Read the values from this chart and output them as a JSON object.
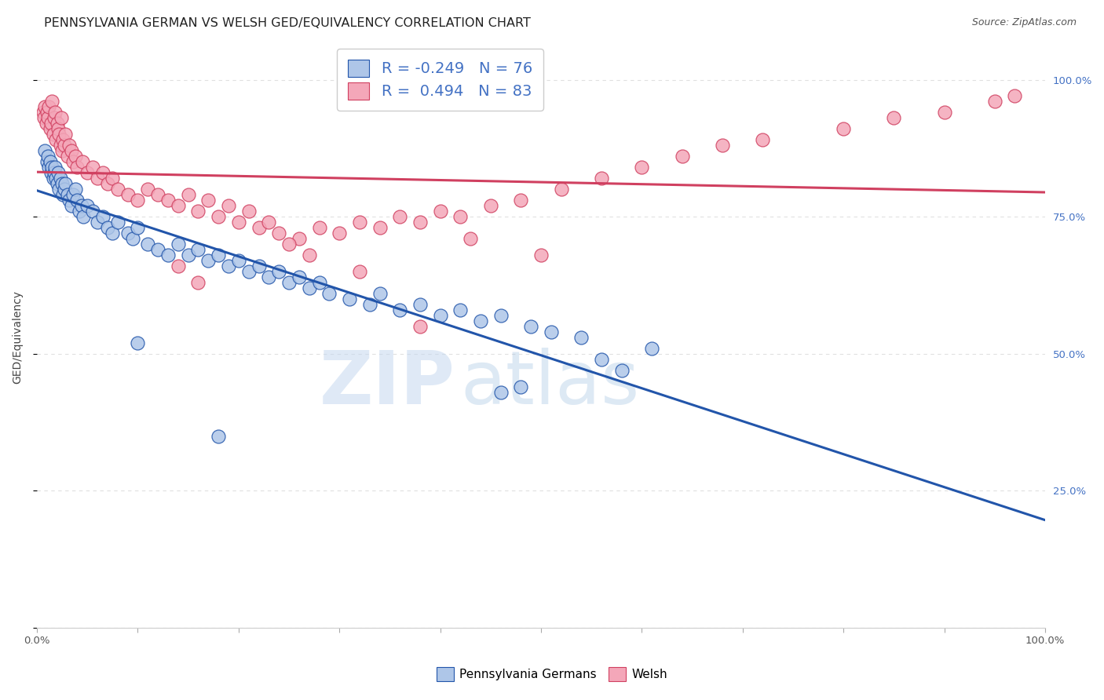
{
  "title": "PENNSYLVANIA GERMAN VS WELSH GED/EQUIVALENCY CORRELATION CHART",
  "source": "Source: ZipAtlas.com",
  "ylabel": "GED/Equivalency",
  "xlim": [
    0.0,
    1.0
  ],
  "ylim": [
    0.0,
    1.06
  ],
  "blue_R": -0.249,
  "blue_N": 76,
  "pink_R": 0.494,
  "pink_N": 83,
  "blue_color": "#aec6e8",
  "pink_color": "#f4a7b9",
  "blue_line_color": "#2255aa",
  "pink_line_color": "#d04060",
  "watermark_zip": "ZIP",
  "watermark_atlas": "atlas",
  "background_color": "#ffffff",
  "grid_color": "#e0e0e0",
  "title_fontsize": 11.5,
  "axis_label_fontsize": 10,
  "tick_fontsize": 9.5,
  "legend_fontsize": 14,
  "source_fontsize": 9,
  "right_tick_color": "#4472c4",
  "blue_scatter_x": [
    0.008,
    0.01,
    0.011,
    0.012,
    0.013,
    0.014,
    0.015,
    0.016,
    0.017,
    0.018,
    0.019,
    0.02,
    0.021,
    0.022,
    0.023,
    0.025,
    0.026,
    0.027,
    0.028,
    0.03,
    0.032,
    0.034,
    0.036,
    0.038,
    0.04,
    0.042,
    0.044,
    0.046,
    0.05,
    0.055,
    0.06,
    0.065,
    0.07,
    0.075,
    0.08,
    0.09,
    0.095,
    0.1,
    0.11,
    0.12,
    0.13,
    0.14,
    0.15,
    0.16,
    0.17,
    0.18,
    0.19,
    0.2,
    0.21,
    0.22,
    0.23,
    0.24,
    0.25,
    0.26,
    0.27,
    0.28,
    0.29,
    0.31,
    0.33,
    0.34,
    0.36,
    0.38,
    0.4,
    0.42,
    0.44,
    0.46,
    0.49,
    0.51,
    0.54,
    0.56,
    0.58,
    0.61,
    0.46,
    0.48,
    0.1,
    0.18
  ],
  "blue_scatter_y": [
    0.87,
    0.85,
    0.86,
    0.84,
    0.85,
    0.83,
    0.84,
    0.82,
    0.83,
    0.84,
    0.82,
    0.81,
    0.83,
    0.8,
    0.82,
    0.81,
    0.79,
    0.8,
    0.81,
    0.79,
    0.78,
    0.77,
    0.79,
    0.8,
    0.78,
    0.76,
    0.77,
    0.75,
    0.77,
    0.76,
    0.74,
    0.75,
    0.73,
    0.72,
    0.74,
    0.72,
    0.71,
    0.73,
    0.7,
    0.69,
    0.68,
    0.7,
    0.68,
    0.69,
    0.67,
    0.68,
    0.66,
    0.67,
    0.65,
    0.66,
    0.64,
    0.65,
    0.63,
    0.64,
    0.62,
    0.63,
    0.61,
    0.6,
    0.59,
    0.61,
    0.58,
    0.59,
    0.57,
    0.58,
    0.56,
    0.57,
    0.55,
    0.54,
    0.53,
    0.49,
    0.47,
    0.51,
    0.43,
    0.44,
    0.52,
    0.35
  ],
  "pink_scatter_x": [
    0.006,
    0.007,
    0.008,
    0.009,
    0.01,
    0.011,
    0.012,
    0.013,
    0.014,
    0.015,
    0.016,
    0.017,
    0.018,
    0.019,
    0.02,
    0.021,
    0.022,
    0.023,
    0.024,
    0.025,
    0.026,
    0.027,
    0.028,
    0.03,
    0.032,
    0.034,
    0.036,
    0.038,
    0.04,
    0.045,
    0.05,
    0.055,
    0.06,
    0.065,
    0.07,
    0.075,
    0.08,
    0.09,
    0.1,
    0.11,
    0.12,
    0.13,
    0.14,
    0.15,
    0.16,
    0.17,
    0.18,
    0.19,
    0.2,
    0.21,
    0.22,
    0.23,
    0.24,
    0.26,
    0.28,
    0.3,
    0.32,
    0.34,
    0.36,
    0.38,
    0.4,
    0.42,
    0.45,
    0.48,
    0.52,
    0.56,
    0.6,
    0.64,
    0.68,
    0.72,
    0.8,
    0.85,
    0.9,
    0.95,
    0.97,
    0.16,
    0.32,
    0.5,
    0.25,
    0.43,
    0.14,
    0.27,
    0.38
  ],
  "pink_scatter_y": [
    0.94,
    0.93,
    0.95,
    0.92,
    0.94,
    0.93,
    0.95,
    0.91,
    0.92,
    0.96,
    0.9,
    0.93,
    0.94,
    0.89,
    0.92,
    0.91,
    0.9,
    0.88,
    0.93,
    0.87,
    0.89,
    0.88,
    0.9,
    0.86,
    0.88,
    0.87,
    0.85,
    0.86,
    0.84,
    0.85,
    0.83,
    0.84,
    0.82,
    0.83,
    0.81,
    0.82,
    0.8,
    0.79,
    0.78,
    0.8,
    0.79,
    0.78,
    0.77,
    0.79,
    0.76,
    0.78,
    0.75,
    0.77,
    0.74,
    0.76,
    0.73,
    0.74,
    0.72,
    0.71,
    0.73,
    0.72,
    0.74,
    0.73,
    0.75,
    0.74,
    0.76,
    0.75,
    0.77,
    0.78,
    0.8,
    0.82,
    0.84,
    0.86,
    0.88,
    0.89,
    0.91,
    0.93,
    0.94,
    0.96,
    0.97,
    0.63,
    0.65,
    0.68,
    0.7,
    0.71,
    0.66,
    0.68,
    0.55
  ]
}
